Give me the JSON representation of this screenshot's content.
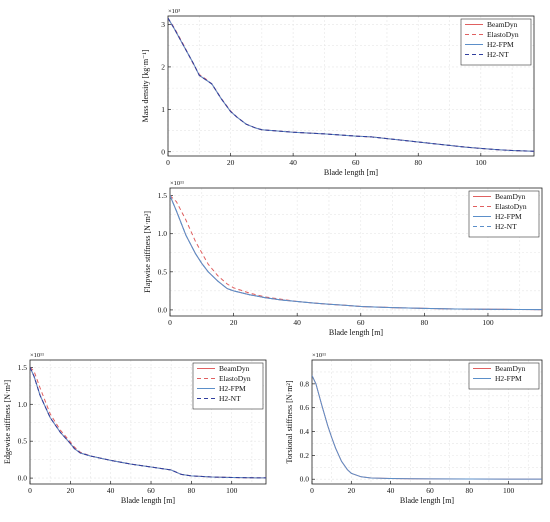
{
  "chart_data": [
    {
      "type": "line",
      "xlabel": "Blade length [m]",
      "ylabel": "Mass density [kg·m⁻¹]",
      "exponent": "×10³",
      "xlim": [
        0,
        117
      ],
      "ylim": [
        -0.1,
        3.2
      ],
      "xticks": [
        0,
        20,
        40,
        60,
        80,
        100
      ],
      "yticks": [
        0,
        1,
        2,
        3
      ],
      "grid": true,
      "legend_position": "top-right",
      "series": [
        {
          "name": "BeamDyn",
          "color": "#e06060",
          "dash": "solid",
          "x": [
            0,
            2,
            5,
            8,
            10,
            12,
            14,
            17,
            20,
            22,
            25,
            28,
            30,
            35,
            40,
            50,
            60,
            65,
            70,
            75,
            80,
            85,
            90,
            95,
            100,
            105,
            110,
            117
          ],
          "y": [
            3.15,
            2.9,
            2.5,
            2.1,
            1.8,
            1.7,
            1.6,
            1.25,
            0.95,
            0.82,
            0.65,
            0.56,
            0.52,
            0.49,
            0.46,
            0.42,
            0.37,
            0.35,
            0.31,
            0.27,
            0.23,
            0.19,
            0.15,
            0.11,
            0.08,
            0.05,
            0.03,
            0.01
          ]
        },
        {
          "name": "ElastoDyn",
          "color": "#e06060",
          "dash": "4,3",
          "x": [
            0,
            2,
            5,
            8,
            10,
            12,
            14,
            17,
            20,
            22,
            25,
            28,
            30,
            35,
            40,
            50,
            60,
            65,
            70,
            75,
            80,
            85,
            90,
            95,
            100,
            105,
            110,
            117
          ],
          "y": [
            3.15,
            2.92,
            2.52,
            2.08,
            1.82,
            1.72,
            1.6,
            1.26,
            0.96,
            0.82,
            0.65,
            0.56,
            0.52,
            0.49,
            0.46,
            0.42,
            0.37,
            0.35,
            0.31,
            0.27,
            0.23,
            0.19,
            0.15,
            0.11,
            0.08,
            0.05,
            0.03,
            0.01
          ]
        },
        {
          "name": "H2-FPM",
          "color": "#5b8fc9",
          "dash": "solid",
          "x": [
            0,
            2,
            5,
            8,
            10,
            12,
            14,
            17,
            20,
            22,
            25,
            28,
            30,
            35,
            40,
            50,
            60,
            65,
            70,
            75,
            80,
            85,
            90,
            95,
            100,
            105,
            110,
            117
          ],
          "y": [
            3.15,
            2.9,
            2.5,
            2.1,
            1.8,
            1.7,
            1.6,
            1.25,
            0.95,
            0.82,
            0.65,
            0.56,
            0.52,
            0.49,
            0.46,
            0.42,
            0.37,
            0.35,
            0.31,
            0.27,
            0.23,
            0.19,
            0.15,
            0.11,
            0.08,
            0.05,
            0.03,
            0.01
          ]
        },
        {
          "name": "H2-NT",
          "color": "#2f3f9e",
          "dash": "4,3",
          "x": [
            0,
            2,
            5,
            8,
            10,
            12,
            14,
            17,
            20,
            22,
            25,
            28,
            30,
            35,
            40,
            50,
            60,
            65,
            70,
            75,
            80,
            85,
            90,
            95,
            100,
            105,
            110,
            117
          ],
          "y": [
            3.15,
            2.9,
            2.5,
            2.1,
            1.8,
            1.7,
            1.6,
            1.25,
            0.95,
            0.82,
            0.65,
            0.56,
            0.52,
            0.49,
            0.46,
            0.42,
            0.37,
            0.35,
            0.31,
            0.27,
            0.23,
            0.19,
            0.15,
            0.11,
            0.08,
            0.05,
            0.03,
            0.01
          ]
        }
      ]
    },
    {
      "type": "line",
      "xlabel": "Blade length [m]",
      "ylabel": "Flapwise stiffness [N·m²]",
      "exponent": "×10¹¹",
      "xlim": [
        0,
        117
      ],
      "ylim": [
        -0.08,
        1.6
      ],
      "xticks": [
        0,
        20,
        40,
        60,
        80,
        100
      ],
      "yticks": [
        0.0,
        0.5,
        1.0,
        1.5
      ],
      "grid": true,
      "legend_position": "top-right",
      "series": [
        {
          "name": "BeamDyn",
          "color": "#e06060",
          "dash": "solid",
          "x": [
            0,
            2,
            5,
            8,
            10,
            12,
            15,
            18,
            20,
            25,
            30,
            35,
            40,
            45,
            50,
            55,
            60,
            70,
            80,
            90,
            100,
            110,
            117
          ],
          "y": [
            1.5,
            1.3,
            0.98,
            0.74,
            0.61,
            0.5,
            0.38,
            0.28,
            0.25,
            0.2,
            0.16,
            0.13,
            0.11,
            0.09,
            0.075,
            0.06,
            0.045,
            0.03,
            0.02,
            0.012,
            0.008,
            0.005,
            0.004
          ]
        },
        {
          "name": "ElastoDyn",
          "color": "#e06060",
          "dash": "4,3",
          "x": [
            0,
            2,
            5,
            8,
            10,
            12,
            15,
            18,
            20,
            25,
            30,
            35,
            40,
            45,
            50,
            55,
            60,
            70,
            80,
            90,
            100,
            110,
            117
          ],
          "y": [
            1.5,
            1.42,
            1.18,
            0.9,
            0.75,
            0.6,
            0.45,
            0.34,
            0.29,
            0.22,
            0.17,
            0.14,
            0.11,
            0.09,
            0.075,
            0.06,
            0.045,
            0.03,
            0.02,
            0.012,
            0.008,
            0.005,
            0.004
          ]
        },
        {
          "name": "H2-FPM",
          "color": "#5b8fc9",
          "dash": "solid",
          "x": [
            0,
            2,
            5,
            8,
            10,
            12,
            15,
            18,
            20,
            25,
            30,
            35,
            40,
            45,
            50,
            55,
            60,
            70,
            80,
            90,
            100,
            110,
            117
          ],
          "y": [
            1.5,
            1.3,
            0.98,
            0.74,
            0.61,
            0.5,
            0.38,
            0.28,
            0.25,
            0.2,
            0.16,
            0.13,
            0.11,
            0.09,
            0.075,
            0.06,
            0.045,
            0.03,
            0.02,
            0.012,
            0.008,
            0.005,
            0.004
          ]
        },
        {
          "name": "H2-NT",
          "color": "#5b8fc9",
          "dash": "4,3",
          "x": [
            0,
            2,
            5,
            8,
            10,
            12,
            15,
            18,
            20,
            25,
            30,
            35,
            40,
            45,
            50,
            55,
            60,
            70,
            80,
            90,
            100,
            110,
            117
          ],
          "y": [
            1.5,
            1.3,
            0.98,
            0.74,
            0.61,
            0.5,
            0.38,
            0.28,
            0.25,
            0.2,
            0.16,
            0.13,
            0.11,
            0.09,
            0.075,
            0.06,
            0.045,
            0.03,
            0.02,
            0.012,
            0.008,
            0.005,
            0.004
          ]
        }
      ]
    },
    {
      "type": "line",
      "xlabel": "Blade length [m]",
      "ylabel": "Edgewise stiffness [N·m²]",
      "exponent": "×10¹¹",
      "xlim": [
        0,
        117
      ],
      "ylim": [
        -0.08,
        1.6
      ],
      "xticks": [
        0,
        20,
        40,
        60,
        80,
        100
      ],
      "yticks": [
        0.0,
        0.5,
        1.0,
        1.5
      ],
      "grid": true,
      "legend_position": "top-right",
      "series": [
        {
          "name": "BeamDyn",
          "color": "#e06060",
          "dash": "solid",
          "x": [
            0,
            2,
            5,
            10,
            15,
            20,
            22,
            25,
            30,
            40,
            50,
            60,
            65,
            70,
            75,
            80,
            90,
            100,
            110,
            117
          ],
          "y": [
            1.5,
            1.38,
            1.12,
            0.82,
            0.62,
            0.47,
            0.4,
            0.34,
            0.3,
            0.24,
            0.19,
            0.15,
            0.13,
            0.11,
            0.05,
            0.03,
            0.015,
            0.008,
            0.004,
            0.003
          ]
        },
        {
          "name": "ElastoDyn",
          "color": "#e06060",
          "dash": "4,3",
          "x": [
            0,
            2,
            5,
            10,
            15,
            20,
            22,
            25,
            30,
            40,
            50,
            60,
            65,
            70,
            75,
            80,
            90,
            100,
            110,
            117
          ],
          "y": [
            1.5,
            1.45,
            1.22,
            0.87,
            0.65,
            0.49,
            0.42,
            0.35,
            0.3,
            0.24,
            0.19,
            0.15,
            0.13,
            0.11,
            0.05,
            0.03,
            0.015,
            0.008,
            0.004,
            0.003
          ]
        },
        {
          "name": "H2-FPM",
          "color": "#5b8fc9",
          "dash": "solid",
          "x": [
            0,
            2,
            5,
            10,
            15,
            20,
            22,
            25,
            30,
            40,
            50,
            60,
            65,
            70,
            75,
            80,
            90,
            100,
            110,
            117
          ],
          "y": [
            1.5,
            1.38,
            1.12,
            0.82,
            0.62,
            0.47,
            0.4,
            0.34,
            0.3,
            0.24,
            0.19,
            0.15,
            0.13,
            0.11,
            0.05,
            0.03,
            0.015,
            0.008,
            0.004,
            0.003
          ]
        },
        {
          "name": "H2-NT",
          "color": "#2f3f9e",
          "dash": "4,3",
          "x": [
            0,
            2,
            5,
            10,
            15,
            20,
            22,
            25,
            30,
            40,
            50,
            60,
            65,
            70,
            75,
            80,
            90,
            100,
            110,
            117
          ],
          "y": [
            1.5,
            1.38,
            1.12,
            0.82,
            0.62,
            0.47,
            0.4,
            0.34,
            0.3,
            0.24,
            0.19,
            0.15,
            0.13,
            0.11,
            0.05,
            0.03,
            0.015,
            0.008,
            0.004,
            0.003
          ]
        }
      ]
    },
    {
      "type": "line",
      "xlabel": "Blade length [m]",
      "ylabel": "Torsional stiffness [N·m²]",
      "exponent": "×10¹¹",
      "xlim": [
        0,
        117
      ],
      "ylim": [
        -0.04,
        1.0
      ],
      "xticks": [
        0,
        20,
        40,
        60,
        80,
        100
      ],
      "yticks": [
        0.0,
        0.2,
        0.4,
        0.6,
        0.8
      ],
      "grid": true,
      "legend_position": "top-right",
      "series": [
        {
          "name": "BeamDyn",
          "color": "#e06060",
          "dash": "solid",
          "x": [
            0,
            2,
            5,
            8,
            10,
            12,
            15,
            18,
            20,
            25,
            30,
            40,
            50,
            60,
            80,
            100,
            117
          ],
          "y": [
            0.87,
            0.8,
            0.62,
            0.45,
            0.35,
            0.26,
            0.15,
            0.08,
            0.05,
            0.02,
            0.01,
            0.006,
            0.004,
            0.003,
            0.002,
            0.001,
            0.001
          ]
        },
        {
          "name": "H2-FPM",
          "color": "#5b8fc9",
          "dash": "solid",
          "x": [
            0,
            2,
            5,
            8,
            10,
            12,
            15,
            18,
            20,
            25,
            30,
            40,
            50,
            60,
            80,
            100,
            117
          ],
          "y": [
            0.87,
            0.8,
            0.62,
            0.45,
            0.35,
            0.26,
            0.15,
            0.08,
            0.05,
            0.02,
            0.01,
            0.006,
            0.004,
            0.003,
            0.002,
            0.001,
            0.001
          ]
        }
      ]
    }
  ]
}
